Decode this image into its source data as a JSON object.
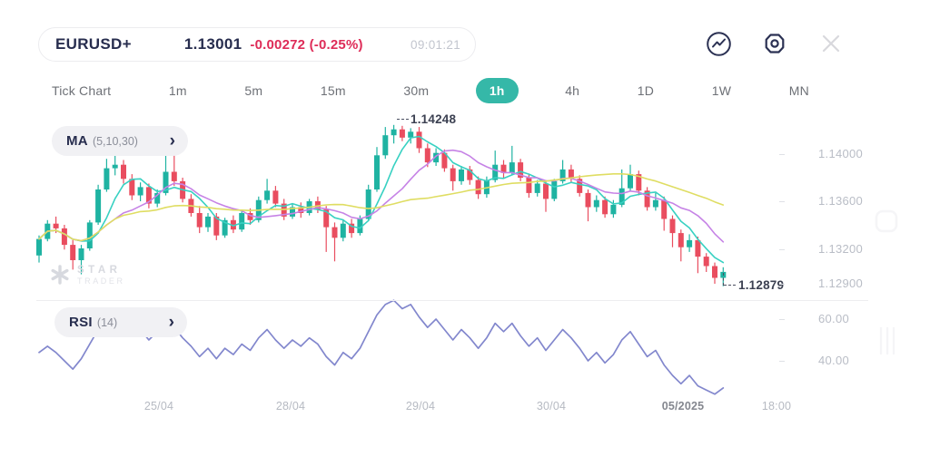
{
  "header": {
    "symbol": "EURUSD+",
    "price": "1.13001",
    "change": "-0.00272 (-0.25%)",
    "time": "09:01:21",
    "icons": [
      "indicator-icon",
      "settings-icon",
      "close-icon"
    ]
  },
  "timeframes": {
    "items": [
      "Tick Chart",
      "1m",
      "5m",
      "15m",
      "30m",
      "1h",
      "4h",
      "1D",
      "1W",
      "MN"
    ],
    "selected": "1h"
  },
  "indicators": {
    "ma": {
      "name": "MA",
      "params": "(5,10,30)"
    },
    "rsi": {
      "name": "RSI",
      "params": "(14)"
    }
  },
  "watermark": {
    "line1": "STAR",
    "line2": "TRADER"
  },
  "annotations": {
    "high": "1.14248",
    "low": "1.12879"
  },
  "price_axis": [
    "1.14000",
    "1.13600",
    "1.13200",
    "1.12900"
  ],
  "rsi_axis": [
    "60.00",
    "40.00"
  ],
  "time_axis": [
    "25/04",
    "28/04",
    "29/04",
    "30/04",
    "05/2025",
    "18:00"
  ],
  "colors": {
    "up": "#1fb3a2",
    "down": "#e94d5f",
    "accent": "#35b8a8",
    "negative": "#de2c58",
    "navy": "#272d4e",
    "ma": [
      "#38d1c2",
      "#c683e6",
      "#dfdd62"
    ],
    "rsi_line": "#8287cd"
  },
  "chart_data": {
    "type": "candlestick",
    "symbol": "EURUSD",
    "timeframe": "1h",
    "title": "EURUSD+ 1h candlestick chart with MA(5,10,30) overlay and RSI(14) subpanel",
    "price_axis_ticks": [
      1.14,
      1.136,
      1.132,
      1.129
    ],
    "rsi_axis_ticks": [
      60,
      40
    ],
    "x_labels": [
      "25/04",
      "28/04",
      "29/04",
      "30/04",
      "05/2025",
      "18:00"
    ],
    "high_annotation": 1.14248,
    "low_annotation": 1.12879,
    "current_price": 1.13001,
    "ma_periods": [
      5,
      10,
      30
    ],
    "candles": [
      [
        1.1314,
        1.1331,
        1.1308,
        1.1328
      ],
      [
        1.1328,
        1.1344,
        1.1326,
        1.1341
      ],
      [
        1.1341,
        1.1347,
        1.1333,
        1.1337
      ],
      [
        1.1337,
        1.134,
        1.1319,
        1.1323
      ],
      [
        1.1323,
        1.1327,
        1.1302,
        1.131
      ],
      [
        1.131,
        1.1323,
        1.1298,
        1.132
      ],
      [
        1.132,
        1.1344,
        1.1318,
        1.1342
      ],
      [
        1.1342,
        1.1374,
        1.134,
        1.137
      ],
      [
        1.137,
        1.1396,
        1.1368,
        1.1388
      ],
      [
        1.1388,
        1.14,
        1.1382,
        1.1391
      ],
      [
        1.1391,
        1.1395,
        1.1375,
        1.1379
      ],
      [
        1.1379,
        1.1383,
        1.1361,
        1.1365
      ],
      [
        1.1365,
        1.1376,
        1.136,
        1.1372
      ],
      [
        1.1372,
        1.1375,
        1.1354,
        1.1358
      ],
      [
        1.1358,
        1.137,
        1.1355,
        1.1367
      ],
      [
        1.1367,
        1.141,
        1.1365,
        1.1385
      ],
      [
        1.1385,
        1.1402,
        1.1373,
        1.1377
      ],
      [
        1.1377,
        1.138,
        1.1359,
        1.1362
      ],
      [
        1.1362,
        1.1366,
        1.1347,
        1.135
      ],
      [
        1.135,
        1.1356,
        1.1333,
        1.1338
      ],
      [
        1.1338,
        1.135,
        1.1334,
        1.1347
      ],
      [
        1.1347,
        1.135,
        1.1327,
        1.1331
      ],
      [
        1.1331,
        1.1346,
        1.1329,
        1.1344
      ],
      [
        1.1344,
        1.1348,
        1.1333,
        1.1336
      ],
      [
        1.1336,
        1.1353,
        1.1334,
        1.135
      ],
      [
        1.135,
        1.1354,
        1.134,
        1.1344
      ],
      [
        1.1344,
        1.1364,
        1.1342,
        1.1361
      ],
      [
        1.1361,
        1.1379,
        1.1358,
        1.1369
      ],
      [
        1.1369,
        1.1373,
        1.1355,
        1.1358
      ],
      [
        1.1358,
        1.1362,
        1.1344,
        1.1347
      ],
      [
        1.1347,
        1.1358,
        1.1345,
        1.1355
      ],
      [
        1.1355,
        1.1359,
        1.1346,
        1.135
      ],
      [
        1.135,
        1.1362,
        1.1348,
        1.136
      ],
      [
        1.136,
        1.1364,
        1.135,
        1.1353
      ],
      [
        1.1353,
        1.1356,
        1.1317,
        1.1338
      ],
      [
        1.1338,
        1.1342,
        1.1309,
        1.1329
      ],
      [
        1.1329,
        1.1344,
        1.1326,
        1.1341
      ],
      [
        1.1341,
        1.1345,
        1.1329,
        1.1333
      ],
      [
        1.1333,
        1.1348,
        1.1331,
        1.1345
      ],
      [
        1.1345,
        1.1374,
        1.1343,
        1.137
      ],
      [
        1.137,
        1.1406,
        1.1368,
        1.1399
      ],
      [
        1.1399,
        1.1423,
        1.1396,
        1.1416
      ],
      [
        1.1416,
        1.14248,
        1.1409,
        1.1421
      ],
      [
        1.1421,
        1.1424,
        1.1411,
        1.1414
      ],
      [
        1.1414,
        1.1422,
        1.1409,
        1.1419
      ],
      [
        1.1419,
        1.1423,
        1.1401,
        1.1405
      ],
      [
        1.1405,
        1.1409,
        1.1389,
        1.1393
      ],
      [
        1.1393,
        1.1405,
        1.139,
        1.1401
      ],
      [
        1.1401,
        1.1404,
        1.1385,
        1.1388
      ],
      [
        1.1388,
        1.1391,
        1.1369,
        1.1377
      ],
      [
        1.1377,
        1.139,
        1.1374,
        1.1387
      ],
      [
        1.1387,
        1.139,
        1.1374,
        1.1378
      ],
      [
        1.1378,
        1.1381,
        1.1362,
        1.1366
      ],
      [
        1.1366,
        1.1381,
        1.1363,
        1.1378
      ],
      [
        1.1378,
        1.1403,
        1.1376,
        1.1391
      ],
      [
        1.1391,
        1.1395,
        1.138,
        1.1384
      ],
      [
        1.1384,
        1.1407,
        1.1382,
        1.1393
      ],
      [
        1.1393,
        1.1396,
        1.1377,
        1.138
      ],
      [
        1.138,
        1.1383,
        1.1363,
        1.1367
      ],
      [
        1.1367,
        1.1378,
        1.1364,
        1.1375
      ],
      [
        1.1375,
        1.1378,
        1.1351,
        1.1362
      ],
      [
        1.1362,
        1.1379,
        1.136,
        1.1377
      ],
      [
        1.1377,
        1.1395,
        1.1375,
        1.1387
      ],
      [
        1.1387,
        1.1391,
        1.1376,
        1.1379
      ],
      [
        1.1379,
        1.1382,
        1.1364,
        1.1367
      ],
      [
        1.1367,
        1.137,
        1.1343,
        1.1355
      ],
      [
        1.1355,
        1.1365,
        1.1351,
        1.1361
      ],
      [
        1.1361,
        1.1364,
        1.1346,
        1.1349
      ],
      [
        1.1349,
        1.1361,
        1.1346,
        1.1357
      ],
      [
        1.1357,
        1.1387,
        1.1355,
        1.1371
      ],
      [
        1.1371,
        1.1391,
        1.1369,
        1.1383
      ],
      [
        1.1383,
        1.1386,
        1.1365,
        1.1369
      ],
      [
        1.1369,
        1.1372,
        1.1352,
        1.1355
      ],
      [
        1.1355,
        1.1367,
        1.1352,
        1.1361
      ],
      [
        1.1361,
        1.1364,
        1.1335,
        1.1345
      ],
      [
        1.1345,
        1.1348,
        1.1321,
        1.1333
      ],
      [
        1.1333,
        1.1336,
        1.1309,
        1.1321
      ],
      [
        1.1321,
        1.1332,
        1.1317,
        1.1327
      ],
      [
        1.1327,
        1.133,
        1.1299,
        1.1313
      ],
      [
        1.1313,
        1.1316,
        1.13,
        1.1305
      ],
      [
        1.1305,
        1.1308,
        1.129,
        1.1295
      ],
      [
        1.1295,
        1.1304,
        1.12879,
        1.13001
      ]
    ],
    "rsi": {
      "period": 14,
      "values": [
        44,
        47,
        44,
        40,
        36,
        41,
        48,
        55,
        60,
        62,
        57,
        52,
        55,
        50,
        54,
        60,
        56,
        51,
        47,
        42,
        46,
        41,
        46,
        43,
        48,
        45,
        51,
        55,
        50,
        46,
        50,
        47,
        51,
        48,
        42,
        38,
        44,
        41,
        46,
        54,
        62,
        67,
        69,
        65,
        67,
        61,
        56,
        60,
        55,
        50,
        55,
        51,
        46,
        51,
        58,
        54,
        58,
        52,
        47,
        51,
        45,
        50,
        55,
        51,
        46,
        40,
        44,
        39,
        43,
        50,
        54,
        48,
        42,
        45,
        38,
        33,
        29,
        33,
        28,
        26,
        24,
        27
      ]
    }
  }
}
